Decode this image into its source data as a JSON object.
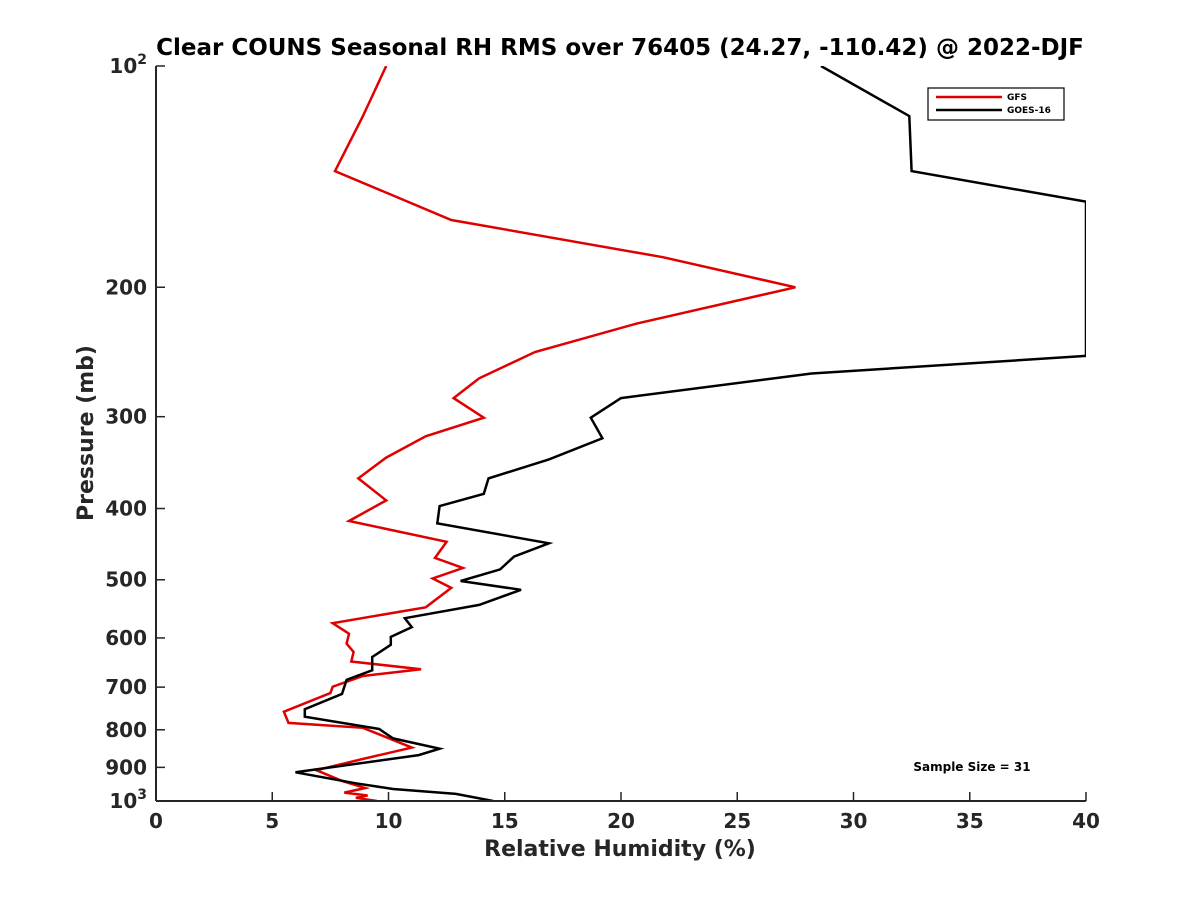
{
  "chart_data": {
    "type": "line",
    "title": "Clear COUNS Seasonal RH RMS over 76405 (24.27, -110.42) @ 2022-DJF",
    "xlabel": "Relative Humidity (%)",
    "ylabel": "Pressure (mb)",
    "xlim": [
      0,
      40
    ],
    "ylim": [
      100,
      1000
    ],
    "y_scale": "log",
    "y_reversed": true,
    "x_ticks": [
      0,
      5,
      10,
      15,
      20,
      25,
      30,
      35,
      40
    ],
    "y_ticks": [
      {
        "value": 100,
        "label": "10",
        "exp": "2"
      },
      {
        "value": 200,
        "label": "200"
      },
      {
        "value": 300,
        "label": "300"
      },
      {
        "value": 400,
        "label": "400"
      },
      {
        "value": 500,
        "label": "500"
      },
      {
        "value": 600,
        "label": "600"
      },
      {
        "value": 700,
        "label": "700"
      },
      {
        "value": 800,
        "label": "800"
      },
      {
        "value": 900,
        "label": "900"
      },
      {
        "value": 1000,
        "label": "10",
        "exp": "3"
      }
    ],
    "legend_position": "top-right",
    "annotation": "Sample Size = 31",
    "series": [
      {
        "name": "GFS",
        "color": "#e00000",
        "points": [
          [
            9.9,
            100
          ],
          [
            8.9,
            117
          ],
          [
            7.7,
            139
          ],
          [
            12.7,
            162
          ],
          [
            21.8,
            182
          ],
          [
            27.5,
            200
          ],
          [
            20.7,
            224
          ],
          [
            16.3,
            245
          ],
          [
            13.9,
            266
          ],
          [
            12.8,
            283
          ],
          [
            14.1,
            301
          ],
          [
            11.6,
            319
          ],
          [
            9.9,
            341
          ],
          [
            8.7,
            364
          ],
          [
            9.9,
            390
          ],
          [
            8.3,
            416
          ],
          [
            12.5,
            444
          ],
          [
            12.0,
            467
          ],
          [
            13.2,
            482
          ],
          [
            11.9,
            498
          ],
          [
            12.7,
            513
          ],
          [
            11.6,
            545
          ],
          [
            7.6,
            573
          ],
          [
            8.3,
            592
          ],
          [
            8.2,
            611
          ],
          [
            8.5,
            627
          ],
          [
            8.4,
            646
          ],
          [
            11.4,
            662
          ],
          [
            8.9,
            676
          ],
          [
            7.6,
            699
          ],
          [
            7.5,
            713
          ],
          [
            5.5,
            756
          ],
          [
            5.7,
            783
          ],
          [
            8.9,
            795
          ],
          [
            11.0,
            846
          ],
          [
            9.0,
            875
          ],
          [
            6.9,
            908
          ],
          [
            8.0,
            939
          ],
          [
            9.0,
            960
          ],
          [
            8.1,
            974
          ],
          [
            9.1,
            983
          ],
          [
            8.6,
            990
          ],
          [
            9.5,
            1000
          ]
        ]
      },
      {
        "name": "GOES-16",
        "color": "#000000",
        "points": [
          [
            28.6,
            100
          ],
          [
            32.4,
            117
          ],
          [
            32.5,
            139
          ],
          [
            40.0,
            153
          ],
          [
            40.0,
            248
          ],
          [
            28.2,
            262
          ],
          [
            20.0,
            283
          ],
          [
            18.7,
            301
          ],
          [
            19.2,
            321
          ],
          [
            16.9,
            343
          ],
          [
            14.3,
            364
          ],
          [
            14.1,
            382
          ],
          [
            12.2,
            397
          ],
          [
            12.1,
            419
          ],
          [
            16.9,
            446
          ],
          [
            15.4,
            465
          ],
          [
            14.8,
            484
          ],
          [
            13.1,
            502
          ],
          [
            15.7,
            516
          ],
          [
            13.9,
            541
          ],
          [
            10.7,
            564
          ],
          [
            11.0,
            580
          ],
          [
            10.1,
            598
          ],
          [
            10.1,
            613
          ],
          [
            9.3,
            637
          ],
          [
            9.3,
            664
          ],
          [
            8.2,
            684
          ],
          [
            8.0,
            715
          ],
          [
            6.4,
            750
          ],
          [
            6.4,
            768
          ],
          [
            9.6,
            798
          ],
          [
            10.2,
            822
          ],
          [
            12.2,
            849
          ],
          [
            11.3,
            866
          ],
          [
            6.0,
            914
          ],
          [
            8.6,
            946
          ],
          [
            10.2,
            963
          ],
          [
            12.9,
            978
          ],
          [
            14.5,
            1000
          ]
        ]
      }
    ]
  }
}
